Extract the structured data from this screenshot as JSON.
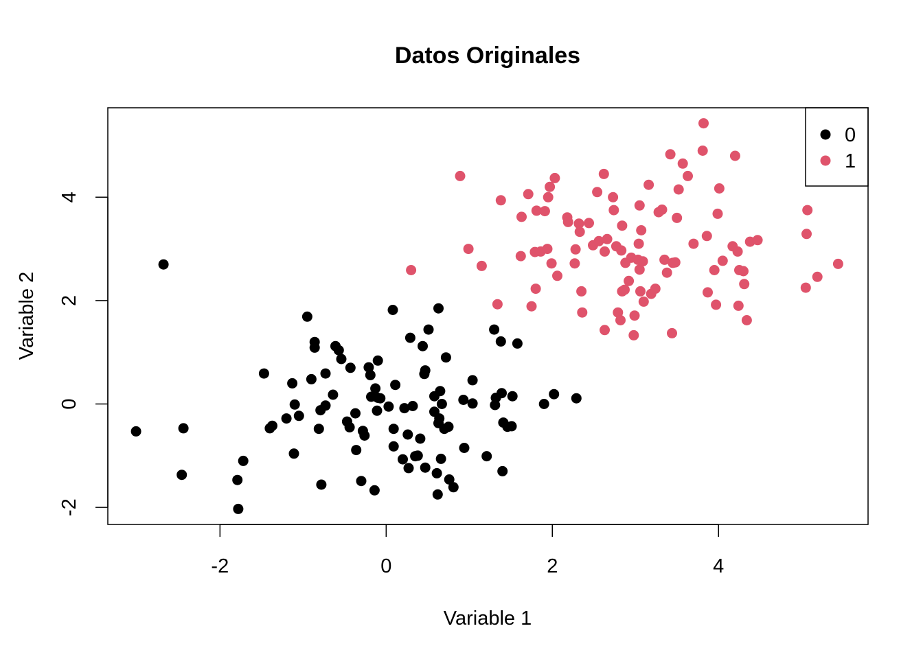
{
  "chart_data": {
    "type": "scatter",
    "title": "Datos Originales",
    "xlabel": "Variable 1",
    "ylabel": "Variable 2",
    "xlim": [
      -3.35,
      5.8
    ],
    "ylim": [
      -2.33,
      5.73
    ],
    "xticks": [
      -2,
      0,
      2,
      4
    ],
    "yticks": [
      -2,
      0,
      2,
      4
    ],
    "xtick_labels": [
      "-2",
      "0",
      "2",
      "4"
    ],
    "ytick_labels": [
      "-2",
      "0",
      "2",
      "4"
    ],
    "grid": false,
    "legend_position": "top-right",
    "series": [
      {
        "name": "0",
        "color": "#000000",
        "points": [
          [
            -2.68,
            2.7
          ],
          [
            -3.01,
            -0.53
          ],
          [
            -2.44,
            -0.47
          ],
          [
            -2.46,
            -1.37
          ],
          [
            -1.79,
            -1.47
          ],
          [
            -1.78,
            -2.03
          ],
          [
            -1.72,
            -1.1
          ],
          [
            -1.47,
            0.59
          ],
          [
            -1.4,
            -0.47
          ],
          [
            -1.37,
            -0.42
          ],
          [
            -1.2,
            -0.28
          ],
          [
            -1.13,
            0.4
          ],
          [
            -1.11,
            -0.96
          ],
          [
            -1.1,
            -0.01
          ],
          [
            -1.05,
            -0.23
          ],
          [
            -0.95,
            1.69
          ],
          [
            -0.9,
            0.48
          ],
          [
            -0.86,
            1.2
          ],
          [
            -0.86,
            1.09
          ],
          [
            -0.81,
            -0.48
          ],
          [
            -0.79,
            -0.12
          ],
          [
            -0.78,
            -1.56
          ],
          [
            -0.73,
            -0.03
          ],
          [
            -0.73,
            0.59
          ],
          [
            -0.64,
            0.18
          ],
          [
            -0.61,
            1.12
          ],
          [
            -0.57,
            1.04
          ],
          [
            -0.54,
            0.87
          ],
          [
            -0.47,
            -0.34
          ],
          [
            -0.44,
            -0.45
          ],
          [
            -0.43,
            0.7
          ],
          [
            -0.37,
            -0.18
          ],
          [
            -0.36,
            -0.89
          ],
          [
            -0.3,
            -1.49
          ],
          [
            -0.28,
            -0.52
          ],
          [
            -0.26,
            -0.61
          ],
          [
            -0.21,
            0.71
          ],
          [
            -0.19,
            0.56
          ],
          [
            -0.18,
            0.14
          ],
          [
            -0.14,
            -1.67
          ],
          [
            -0.13,
            0.3
          ],
          [
            -0.11,
            -0.13
          ],
          [
            -0.1,
            0.12
          ],
          [
            -0.1,
            0.84
          ],
          [
            -0.07,
            0.11
          ],
          [
            0.03,
            -0.05
          ],
          [
            0.08,
            1.82
          ],
          [
            0.09,
            -0.48
          ],
          [
            0.09,
            -0.82
          ],
          [
            0.11,
            0.37
          ],
          [
            0.2,
            -1.07
          ],
          [
            0.22,
            -0.08
          ],
          [
            0.26,
            -0.59
          ],
          [
            0.27,
            -1.24
          ],
          [
            0.29,
            1.28
          ],
          [
            0.32,
            -0.04
          ],
          [
            0.35,
            -1.01
          ],
          [
            0.38,
            -1.0
          ],
          [
            0.41,
            -0.67
          ],
          [
            0.44,
            1.12
          ],
          [
            0.46,
            0.58
          ],
          [
            0.47,
            0.65
          ],
          [
            0.47,
            -1.23
          ],
          [
            0.51,
            1.44
          ],
          [
            0.58,
            0.15
          ],
          [
            0.58,
            -0.15
          ],
          [
            0.61,
            -1.34
          ],
          [
            0.62,
            -1.75
          ],
          [
            0.63,
            1.85
          ],
          [
            0.63,
            -0.37
          ],
          [
            0.64,
            -0.28
          ],
          [
            0.65,
            0.25
          ],
          [
            0.66,
            -1.06
          ],
          [
            0.67,
            0.0
          ],
          [
            0.7,
            -0.48
          ],
          [
            0.72,
            0.9
          ],
          [
            0.75,
            -0.44
          ],
          [
            0.76,
            -1.46
          ],
          [
            0.81,
            -1.61
          ],
          [
            0.93,
            0.08
          ],
          [
            0.94,
            -0.85
          ],
          [
            1.04,
            0.46
          ],
          [
            1.04,
            0.01
          ],
          [
            1.21,
            -1.01
          ],
          [
            1.3,
            1.44
          ],
          [
            1.31,
            -0.02
          ],
          [
            1.32,
            0.12
          ],
          [
            1.38,
            1.21
          ],
          [
            1.39,
            0.21
          ],
          [
            1.4,
            -1.3
          ],
          [
            1.41,
            -0.36
          ],
          [
            1.46,
            -0.44
          ],
          [
            1.51,
            -0.43
          ],
          [
            1.52,
            0.15
          ],
          [
            1.58,
            1.17
          ],
          [
            1.9,
            0.0
          ],
          [
            2.02,
            0.19
          ],
          [
            2.29,
            0.11
          ]
        ]
      },
      {
        "name": "1",
        "color": "#DF536B",
        "points": [
          [
            0.3,
            2.59
          ],
          [
            0.89,
            4.41
          ],
          [
            0.99,
            3.0
          ],
          [
            1.15,
            2.67
          ],
          [
            1.34,
            1.93
          ],
          [
            1.38,
            3.94
          ],
          [
            1.62,
            2.86
          ],
          [
            1.63,
            3.62
          ],
          [
            1.71,
            4.06
          ],
          [
            1.75,
            1.89
          ],
          [
            1.79,
            2.94
          ],
          [
            1.8,
            2.23
          ],
          [
            1.81,
            3.74
          ],
          [
            1.86,
            2.95
          ],
          [
            1.91,
            3.73
          ],
          [
            1.94,
            3.0
          ],
          [
            1.95,
            4.0
          ],
          [
            1.97,
            4.2
          ],
          [
            1.99,
            2.72
          ],
          [
            2.03,
            4.37
          ],
          [
            2.06,
            2.48
          ],
          [
            2.18,
            3.61
          ],
          [
            2.19,
            3.52
          ],
          [
            2.27,
            2.72
          ],
          [
            2.28,
            2.99
          ],
          [
            2.32,
            3.49
          ],
          [
            2.33,
            3.33
          ],
          [
            2.35,
            2.18
          ],
          [
            2.36,
            1.77
          ],
          [
            2.44,
            3.5
          ],
          [
            2.49,
            3.07
          ],
          [
            2.54,
            4.1
          ],
          [
            2.56,
            3.15
          ],
          [
            2.62,
            4.45
          ],
          [
            2.63,
            1.43
          ],
          [
            2.63,
            2.95
          ],
          [
            2.66,
            3.19
          ],
          [
            2.73,
            4.0
          ],
          [
            2.74,
            3.75
          ],
          [
            2.77,
            3.05
          ],
          [
            2.79,
            1.77
          ],
          [
            2.82,
            1.62
          ],
          [
            2.83,
            2.97
          ],
          [
            2.84,
            2.18
          ],
          [
            2.84,
            3.45
          ],
          [
            2.87,
            2.21
          ],
          [
            2.88,
            2.73
          ],
          [
            2.92,
            2.38
          ],
          [
            2.95,
            2.83
          ],
          [
            2.98,
            1.33
          ],
          [
            2.99,
            1.71
          ],
          [
            3.03,
            2.79
          ],
          [
            3.04,
            3.1
          ],
          [
            3.05,
            3.84
          ],
          [
            3.05,
            2.6
          ],
          [
            3.06,
            2.18
          ],
          [
            3.07,
            3.36
          ],
          [
            3.09,
            2.76
          ],
          [
            3.1,
            1.98
          ],
          [
            3.16,
            4.24
          ],
          [
            3.19,
            2.13
          ],
          [
            3.24,
            2.23
          ],
          [
            3.28,
            3.71
          ],
          [
            3.32,
            3.76
          ],
          [
            3.35,
            2.79
          ],
          [
            3.38,
            2.54
          ],
          [
            3.42,
            4.83
          ],
          [
            3.44,
            1.37
          ],
          [
            3.45,
            2.73
          ],
          [
            3.48,
            2.74
          ],
          [
            3.5,
            3.6
          ],
          [
            3.52,
            4.15
          ],
          [
            3.57,
            4.65
          ],
          [
            3.63,
            4.41
          ],
          [
            3.7,
            3.1
          ],
          [
            3.81,
            4.9
          ],
          [
            3.82,
            5.43
          ],
          [
            3.86,
            3.25
          ],
          [
            3.87,
            2.16
          ],
          [
            3.95,
            2.59
          ],
          [
            3.97,
            1.92
          ],
          [
            3.99,
            3.68
          ],
          [
            4.01,
            4.17
          ],
          [
            4.05,
            2.77
          ],
          [
            4.17,
            3.05
          ],
          [
            4.2,
            4.8
          ],
          [
            4.23,
            2.95
          ],
          [
            4.24,
            1.9
          ],
          [
            4.25,
            2.59
          ],
          [
            4.3,
            2.57
          ],
          [
            4.31,
            2.32
          ],
          [
            4.34,
            1.62
          ],
          [
            4.38,
            3.14
          ],
          [
            4.47,
            3.17
          ],
          [
            5.05,
            2.25
          ],
          [
            5.06,
            3.29
          ],
          [
            5.07,
            3.75
          ],
          [
            5.19,
            2.46
          ],
          [
            5.44,
            2.71
          ]
        ]
      }
    ]
  }
}
